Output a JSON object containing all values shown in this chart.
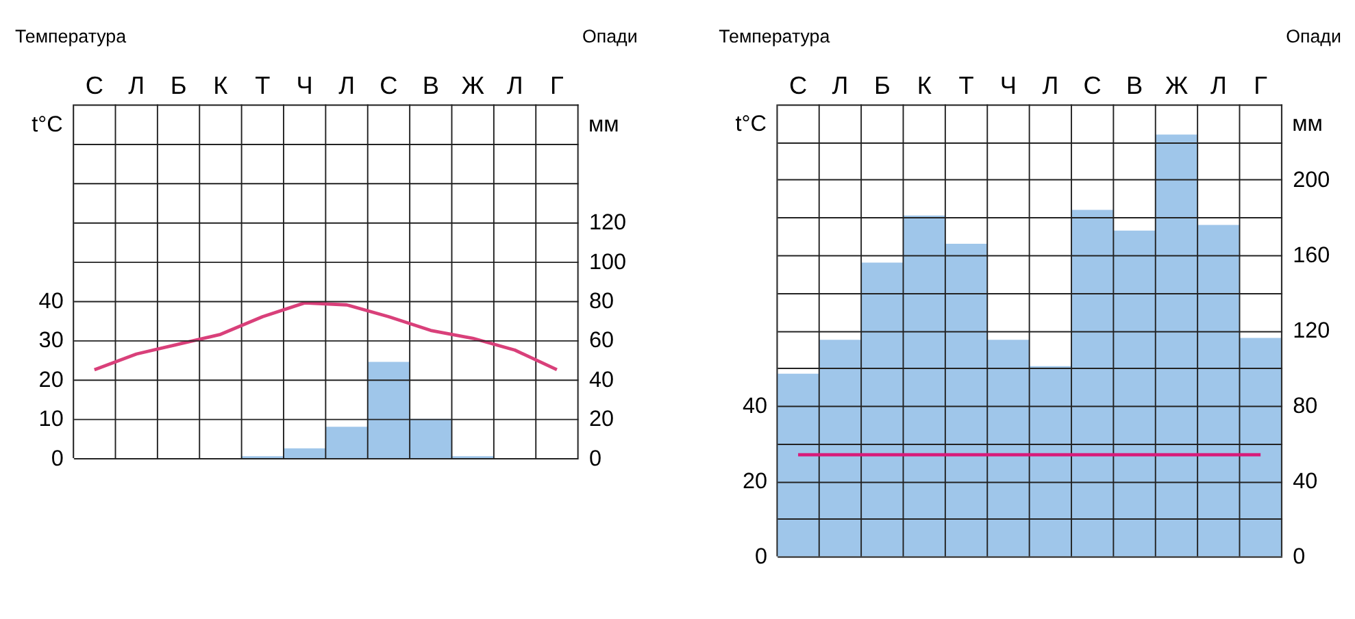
{
  "chart_data": [
    {
      "type": "bar",
      "ylabel": "Температура",
      "y2label": "Опади",
      "annotations": [
        "t°C",
        "мм"
      ],
      "categories": [
        "С",
        "Л",
        "Б",
        "К",
        "Т",
        "Ч",
        "Л",
        "С",
        "В",
        "Ж",
        "Л",
        "Г"
      ],
      "series": [
        {
          "axis": "y2",
          "color": "#9fc6ea",
          "values": [
            0,
            0,
            0,
            0,
            1,
            5,
            16,
            49,
            20,
            1,
            0,
            0
          ]
        },
        {
          "type": "line",
          "color": "#d9407a",
          "values": [
            22.5,
            26.5,
            29,
            31.5,
            36,
            39.5,
            39,
            36,
            32.5,
            30.5,
            27.5,
            22.5
          ]
        }
      ],
      "ylim": [
        0,
        90
      ],
      "yticks": [
        0,
        10,
        20,
        30,
        40,
        {
          "value": 50,
          "label": null
        },
        {
          "value": 60,
          "label": null
        },
        {
          "value": 70,
          "label": null
        },
        {
          "value": 80,
          "label": null
        },
        {
          "value": 90,
          "label": null
        }
      ],
      "y2lim": [
        0,
        180
      ],
      "y2ticks": [
        0,
        20,
        40,
        60,
        80,
        100,
        120
      ],
      "grid": true,
      "line_style": "solid",
      "marker": "none"
    },
    {
      "type": "bar",
      "ylabel": "Температура",
      "y2label": "Опади",
      "annotations": [
        "t°C",
        "мм"
      ],
      "categories": [
        "С",
        "Л",
        "Б",
        "К",
        "Т",
        "Ч",
        "Л",
        "С",
        "В",
        "Ж",
        "Л",
        "Г"
      ],
      "series": [
        {
          "axis": "y2",
          "color": "#9fc6ea",
          "values": [
            97,
            115,
            156,
            181,
            166,
            115,
            101,
            184,
            173,
            224,
            176,
            116
          ]
        },
        {
          "type": "line",
          "color": "#d81b7a",
          "values": [
            27,
            27,
            27,
            27,
            27,
            27,
            27,
            27,
            27,
            27,
            27,
            27
          ]
        }
      ],
      "ylim": [
        0,
        120
      ],
      "yticks": [
        0,
        {
          "value": 10,
          "label": null
        },
        20,
        {
          "value": 30,
          "label": null
        },
        40,
        {
          "value": 50,
          "label": null
        },
        {
          "value": 60,
          "label": null
        },
        {
          "value": 70,
          "label": null
        },
        {
          "value": 80,
          "label": null
        },
        {
          "value": 90,
          "label": null
        },
        {
          "value": 100,
          "label": null
        },
        {
          "value": 110,
          "label": null
        },
        {
          "value": 120,
          "label": null
        }
      ],
      "y2lim": [
        0,
        240
      ],
      "y2ticks": [
        0,
        40,
        80,
        120,
        160,
        200
      ],
      "grid": true,
      "line_style": "solid",
      "marker": "none"
    }
  ]
}
